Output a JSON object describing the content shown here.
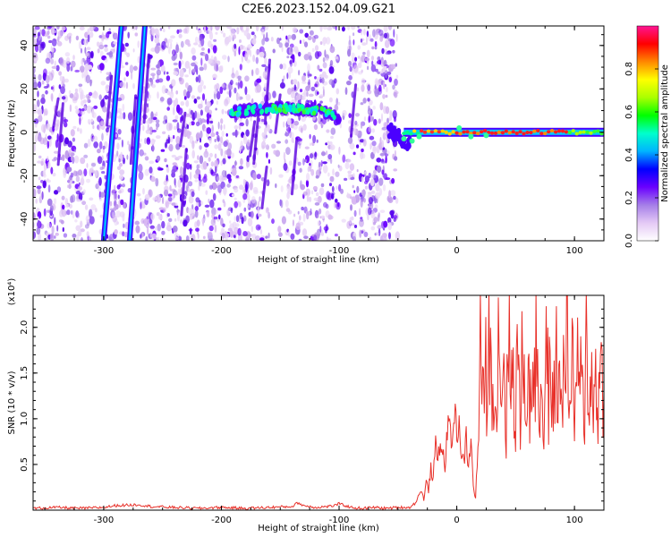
{
  "title": "C2E6.2023.152.04.09.G21",
  "chart_data": [
    {
      "type": "heatmap",
      "xlabel": "Height of straight line (km)",
      "ylabel": "Frequency (Hz)",
      "xlim": [
        -360,
        125
      ],
      "ylim": [
        -50,
        49
      ],
      "x_ticks": [
        -300,
        -200,
        -100,
        0,
        100
      ],
      "y_ticks": [
        -40,
        -20,
        0,
        20,
        40
      ],
      "colorbar": {
        "label": "Normalized spectral amplitude",
        "range": [
          0,
          1
        ],
        "ticks": [
          0.0,
          0.2,
          0.4,
          0.6,
          0.8
        ],
        "colormap": [
          "#ffffff",
          "#e4c9f5",
          "#a57ee8",
          "#6a00ff",
          "#0000ff",
          "#00b4ff",
          "#00ffcc",
          "#00ff00",
          "#aaff00",
          "#ffff00",
          "#ff8800",
          "#ff0000",
          "#ff1493"
        ]
      },
      "features": {
        "noise_region_x": [
          -360,
          -50
        ],
        "blank_region_x": [
          -50,
          125
        ],
        "track1_tilted_line": {
          "x": [
            -300,
            -285
          ],
          "y": [
            -50,
            49
          ]
        },
        "track2_tilted_line": {
          "x": [
            -278,
            -265
          ],
          "y": [
            -50,
            49
          ]
        },
        "drift_band": {
          "x": [
            -195,
            -100
          ],
          "y": [
            7,
            12
          ]
        },
        "carrier_line": {
          "x": [
            -45,
            125
          ],
          "y": [
            -2,
            2
          ]
        }
      }
    },
    {
      "type": "line",
      "xlabel": "Height of straight line (km)",
      "ylabel": "SNR (10 * v/v)",
      "y_multiplier": "(x10⁴)",
      "xlim": [
        -360,
        125
      ],
      "ylim": [
        0,
        2.35
      ],
      "x_ticks": [
        -300,
        -200,
        -100,
        0,
        100
      ],
      "y_ticks": [
        0.5,
        1.0,
        1.5,
        2.0
      ],
      "y_tick_labels": [
        "0.5",
        "1.0",
        "1.5",
        "2.0"
      ],
      "series": [
        {
          "color": "#e8312a",
          "x": [
            -360,
            -340,
            -320,
            -300,
            -290,
            -270,
            -260,
            -240,
            -220,
            -200,
            -180,
            -160,
            -140,
            -135,
            -130,
            -120,
            -110,
            -104,
            -100,
            -90,
            -80,
            -70,
            -60,
            -50,
            -40,
            -35,
            -32,
            -30,
            -28,
            -26,
            -24,
            -22,
            -20,
            -18,
            -16,
            -14,
            -12,
            -10,
            -8,
            -6,
            -4,
            -2,
            0,
            2,
            4,
            6,
            8,
            10,
            12,
            14,
            16,
            18,
            20,
            22,
            24,
            26,
            28,
            30,
            32,
            34,
            36,
            38,
            40,
            42,
            44,
            46,
            48,
            50,
            52,
            54,
            56,
            58,
            60,
            62,
            64,
            66,
            68,
            70,
            72,
            74,
            76,
            78,
            80,
            82,
            84,
            86,
            88,
            90,
            92,
            94,
            96,
            98,
            100,
            102,
            104,
            106,
            108,
            110,
            112,
            114,
            116,
            118,
            120,
            122,
            125
          ],
          "y": [
            0.02,
            0.03,
            0.02,
            0.03,
            0.05,
            0.06,
            0.04,
            0.03,
            0.02,
            0.03,
            0.02,
            0.03,
            0.04,
            0.08,
            0.05,
            0.03,
            0.04,
            0.05,
            0.07,
            0.03,
            0.02,
            0.03,
            0.02,
            0.03,
            0.03,
            0.08,
            0.18,
            0.2,
            0.12,
            0.3,
            0.22,
            0.45,
            0.35,
            0.7,
            0.55,
            0.78,
            0.62,
            0.5,
            0.85,
            0.95,
            0.7,
            1.1,
            0.85,
            0.95,
            0.6,
            0.5,
            0.8,
            0.45,
            0.75,
            0.3,
            0.1,
            0.7,
            1.9,
            1.1,
            1.6,
            1.3,
            2.05,
            1.0,
            1.85,
            0.9,
            2.3,
            1.2,
            1.7,
            0.85,
            2.2,
            1.3,
            1.55,
            1.0,
            2.1,
            0.7,
            1.95,
            1.15,
            1.6,
            1.05,
            1.75,
            1.3,
            2.0,
            0.95,
            1.5,
            0.8,
            1.85,
            1.2,
            1.7,
            0.75,
            2.1,
            1.0,
            1.45,
            1.25,
            1.9,
            2.35,
            1.0,
            1.6,
            0.95,
            1.8,
            1.15,
            1.5,
            0.8,
            1.95,
            1.25,
            1.6,
            0.9,
            1.7,
            1.1,
            1.5,
            1.3
          ]
        }
      ]
    }
  ]
}
